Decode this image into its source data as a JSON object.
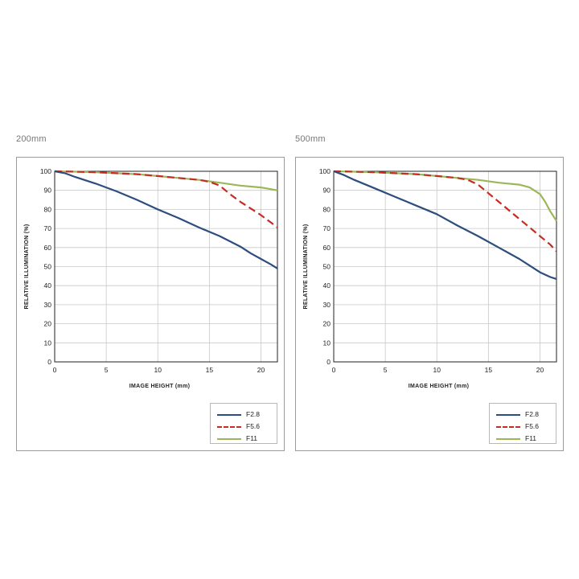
{
  "colors": {
    "F2.8": "#2c4d7d",
    "F5.6": "#c42d25",
    "F11": "#9ab85a",
    "grid": "#c8c8c8",
    "frame": "#222222"
  },
  "chart_data": [
    {
      "type": "line",
      "caption": "200mm",
      "xlabel": "IMAGE HEIGHT (mm)",
      "ylabel": "RELATIVE ILLUMINATION (%)",
      "xlim": [
        0,
        21.6
      ],
      "ylim": [
        0,
        100
      ],
      "xticks": [
        0,
        5,
        10,
        15,
        20
      ],
      "yticks": [
        0,
        10,
        20,
        30,
        40,
        50,
        60,
        70,
        80,
        90,
        100
      ],
      "grid": true,
      "legend_position": "bottom-right",
      "series": [
        {
          "name": "F2.8",
          "style": "solid",
          "x": [
            0,
            1,
            2,
            4,
            6,
            8,
            10,
            12,
            14,
            16,
            18,
            19,
            20,
            21,
            21.6
          ],
          "y": [
            100,
            99,
            97,
            93.5,
            89.5,
            85,
            80,
            75.5,
            70.5,
            66,
            60.5,
            57,
            54,
            51,
            49
          ]
        },
        {
          "name": "F5.6",
          "style": "dashed",
          "x": [
            0,
            2,
            4,
            6,
            8,
            10,
            12,
            14,
            15,
            16,
            17,
            18,
            19,
            20,
            21,
            21.6
          ],
          "y": [
            100,
            99.8,
            99.5,
            99,
            98.5,
            97.5,
            96.5,
            95.5,
            94.5,
            92.5,
            88,
            84,
            80.5,
            77,
            73,
            70.5
          ]
        },
        {
          "name": "F11",
          "style": "solid",
          "x": [
            0,
            2,
            4,
            6,
            8,
            10,
            12,
            14,
            16,
            18,
            20,
            21.6
          ],
          "y": [
            100,
            99.8,
            99.5,
            99,
            98.5,
            97.5,
            96.5,
            95.5,
            94,
            92.5,
            91.5,
            90
          ]
        }
      ]
    },
    {
      "type": "line",
      "caption": "500mm",
      "xlabel": "IMAGE HEIGHT (mm)",
      "ylabel": "RELATIVE ILLUMINATION (%)",
      "xlim": [
        0,
        21.6
      ],
      "ylim": [
        0,
        100
      ],
      "xticks": [
        0,
        5,
        10,
        15,
        20
      ],
      "yticks": [
        0,
        10,
        20,
        30,
        40,
        50,
        60,
        70,
        80,
        90,
        100
      ],
      "grid": true,
      "legend_position": "bottom-right",
      "series": [
        {
          "name": "F2.8",
          "style": "solid",
          "x": [
            0,
            1,
            2,
            4,
            6,
            8,
            10,
            12,
            14,
            16,
            18,
            19,
            20,
            21,
            21.6
          ],
          "y": [
            100,
            98,
            95.5,
            91,
            86.5,
            82,
            77.5,
            71.5,
            66,
            60,
            54,
            50.5,
            47,
            44.5,
            43.5
          ]
        },
        {
          "name": "F5.6",
          "style": "dashed",
          "x": [
            0,
            2,
            4,
            6,
            8,
            10,
            12,
            13,
            14,
            15,
            16,
            17,
            18,
            19,
            20,
            21,
            21.6
          ],
          "y": [
            100,
            99.8,
            99.5,
            99,
            98.5,
            97.5,
            96.5,
            95.5,
            93,
            88.5,
            84,
            79.5,
            75,
            70.5,
            66,
            61.5,
            58
          ]
        },
        {
          "name": "F11",
          "style": "solid",
          "x": [
            0,
            2,
            4,
            6,
            8,
            10,
            12,
            14,
            16,
            18,
            19,
            20,
            20.5,
            21,
            21.6
          ],
          "y": [
            100,
            99.8,
            99.5,
            99,
            98.5,
            97.5,
            96.5,
            95.5,
            94,
            93,
            91.5,
            88,
            84,
            79,
            74
          ]
        }
      ]
    }
  ]
}
